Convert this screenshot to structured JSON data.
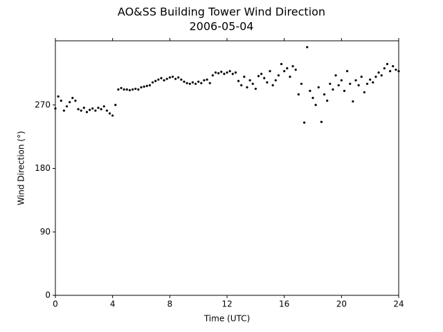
{
  "chart_data": {
    "type": "scatter",
    "title": "AO&SS Building Tower Wind Direction",
    "subtitle": "2006-05-04",
    "xlabel": "Time (UTC)",
    "ylabel": "Wind Direction (°)",
    "color": "#000000",
    "xlim": [
      0,
      24
    ],
    "xticks": [
      0,
      4,
      8,
      12,
      16,
      20,
      24
    ],
    "ylim": [
      0,
      361
    ],
    "yticks": [
      0,
      90,
      180,
      270
    ],
    "x": [
      0,
      0.2,
      0.4,
      0.6,
      0.8,
      1,
      1.2,
      1.4,
      1.6,
      1.8,
      2,
      2.2,
      2.4,
      2.6,
      2.8,
      3,
      3.2,
      3.4,
      3.6,
      3.8,
      4,
      4.2,
      4.4,
      4.6,
      4.8,
      5,
      5.2,
      5.4,
      5.6,
      5.8,
      6,
      6.2,
      6.4,
      6.6,
      6.8,
      7,
      7.2,
      7.4,
      7.6,
      7.8,
      8,
      8.2,
      8.4,
      8.6,
      8.8,
      9,
      9.2,
      9.4,
      9.6,
      9.8,
      10,
      10.2,
      10.4,
      10.6,
      10.8,
      11,
      11.2,
      11.4,
      11.6,
      11.8,
      12,
      12.2,
      12.4,
      12.6,
      12.8,
      13,
      13.2,
      13.4,
      13.6,
      13.8,
      14,
      14.2,
      14.4,
      14.6,
      14.8,
      15,
      15.2,
      15.4,
      15.6,
      15.8,
      16,
      16.2,
      16.4,
      16.6,
      16.8,
      17,
      17.2,
      17.4,
      17.6,
      17.8,
      18,
      18.2,
      18.4,
      18.6,
      18.8,
      19,
      19.2,
      19.4,
      19.6,
      19.8,
      20,
      20.2,
      20.4,
      20.6,
      20.8,
      21,
      21.2,
      21.4,
      21.6,
      21.8,
      22,
      22.2,
      22.4,
      22.6,
      22.8,
      23,
      23.2,
      23.4,
      23.6,
      23.8,
      24
    ],
    "values": [
      265,
      282,
      276,
      262,
      268,
      274,
      280,
      276,
      264,
      262,
      266,
      260,
      263,
      265,
      262,
      266,
      264,
      268,
      262,
      258,
      255,
      270,
      292,
      294,
      292,
      292,
      291,
      292,
      293,
      292,
      295,
      296,
      297,
      298,
      302,
      304,
      306,
      308,
      305,
      307,
      309,
      310,
      307,
      309,
      306,
      303,
      301,
      300,
      302,
      300,
      303,
      301,
      305,
      306,
      301,
      312,
      316,
      315,
      317,
      314,
      316,
      318,
      314,
      316,
      304,
      298,
      310,
      295,
      305,
      300,
      293,
      311,
      314,
      308,
      302,
      318,
      298,
      305,
      312,
      328,
      318,
      322,
      310,
      325,
      320,
      285,
      300,
      245,
      352,
      290,
      280,
      270,
      295,
      246,
      285,
      276,
      300,
      292,
      312,
      298,
      305,
      290,
      318,
      300,
      275,
      305,
      298,
      310,
      288,
      300,
      306,
      302,
      310,
      316,
      312,
      322,
      328,
      318,
      325,
      320,
      318
    ]
  }
}
